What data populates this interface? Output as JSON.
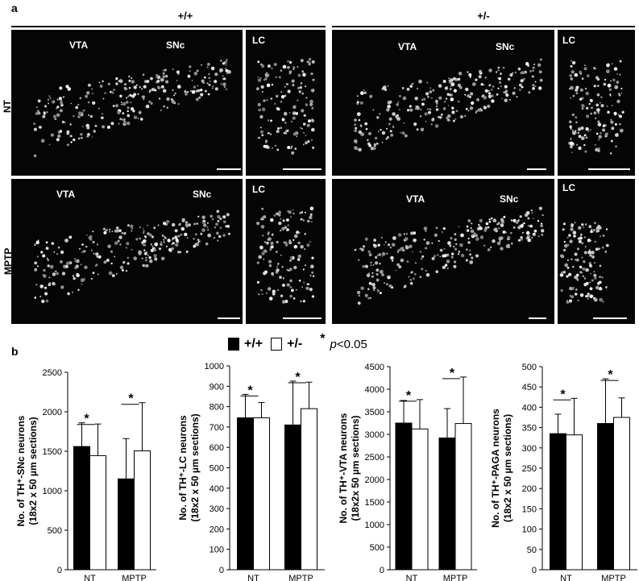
{
  "figure": {
    "panel_a": "a",
    "panel_b": "b",
    "genotype_left": "+/+",
    "genotype_right": "+/-",
    "row_nt": "NT",
    "row_mptp": "MPTP",
    "micrographs": [
      {
        "labels": [
          "VTA",
          "SNc"
        ]
      },
      {
        "labels": [
          "LC"
        ]
      },
      {
        "labels": [
          "VTA",
          "SNc"
        ]
      },
      {
        "labels": [
          "LC"
        ]
      },
      {
        "labels": [
          "VTA",
          "SNc"
        ]
      },
      {
        "labels": [
          "LC"
        ]
      },
      {
        "labels": [
          "VTA",
          "SNc"
        ]
      },
      {
        "labels": [
          "LC"
        ]
      }
    ],
    "legend": {
      "wt": "+/+",
      "het": "+/-",
      "star": "*",
      "p_label": "p",
      "p_threshold": "<0.05"
    },
    "colors": {
      "wt_fill": "#000000",
      "het_fill": "#ffffff",
      "micro_bg": "#050505"
    }
  },
  "chart_data": [
    {
      "type": "bar",
      "ylabel_line1": "No. of TH⁺-SNc neurons",
      "ylabel_line2": "(18x2 x 50 µm sections)",
      "categories": [
        "NT",
        "MPTP"
      ],
      "ylim": [
        0,
        2500
      ],
      "yticks": [
        0,
        500,
        1000,
        1500,
        2000,
        2500
      ],
      "series": [
        {
          "name": "+/+",
          "values": [
            1560,
            1150
          ],
          "errors": [
            300,
            510
          ]
        },
        {
          "name": "+/-",
          "values": [
            1445,
            1505
          ],
          "errors": [
            400,
            610
          ]
        }
      ],
      "significance": [
        "*",
        "*"
      ]
    },
    {
      "type": "bar",
      "ylabel_line1": "No. of TH⁺-LC neurons",
      "ylabel_line2": "(18x2 x 50 µm  sections)",
      "categories": [
        "NT",
        "MPTP"
      ],
      "ylim": [
        0,
        1000
      ],
      "yticks": [
        0,
        100,
        200,
        300,
        400,
        500,
        600,
        700,
        800,
        900,
        1000
      ],
      "series": [
        {
          "name": "+/+",
          "values": [
            745,
            710
          ],
          "errors": [
            115,
            215
          ]
        },
        {
          "name": "+/-",
          "values": [
            745,
            790
          ],
          "errors": [
            75,
            130
          ]
        }
      ],
      "significance": [
        "*",
        "*"
      ]
    },
    {
      "type": "bar",
      "ylabel_line1": "No. of TH⁺-VTA neurons",
      "ylabel_line2": "(18x2x 50 µm  sections)",
      "categories": [
        "NT",
        "MPTP"
      ],
      "ylim": [
        0,
        4500
      ],
      "yticks": [
        0,
        500,
        1000,
        1500,
        2000,
        2500,
        3000,
        3500,
        4000,
        4500
      ],
      "series": [
        {
          "name": "+/+",
          "values": [
            3250,
            2920
          ],
          "errors": [
            500,
            650
          ]
        },
        {
          "name": "+/-",
          "values": [
            3120,
            3240
          ],
          "errors": [
            650,
            1030
          ]
        }
      ],
      "significance": [
        "*",
        "*"
      ]
    },
    {
      "type": "bar",
      "ylabel_line1": "No. of TH⁺-PAGA neurons",
      "ylabel_line2": "(18x2 x 50 µm  sections)",
      "categories": [
        "NT",
        "MPTP"
      ],
      "ylim": [
        0,
        500
      ],
      "yticks": [
        0,
        50,
        100,
        150,
        200,
        250,
        300,
        350,
        400,
        450,
        500
      ],
      "series": [
        {
          "name": "+/+",
          "values": [
            335,
            360
          ],
          "errors": [
            48,
            110
          ]
        },
        {
          "name": "+/-",
          "values": [
            332,
            375
          ],
          "errors": [
            90,
            48
          ]
        }
      ],
      "significance": [
        "*",
        "*"
      ]
    }
  ]
}
